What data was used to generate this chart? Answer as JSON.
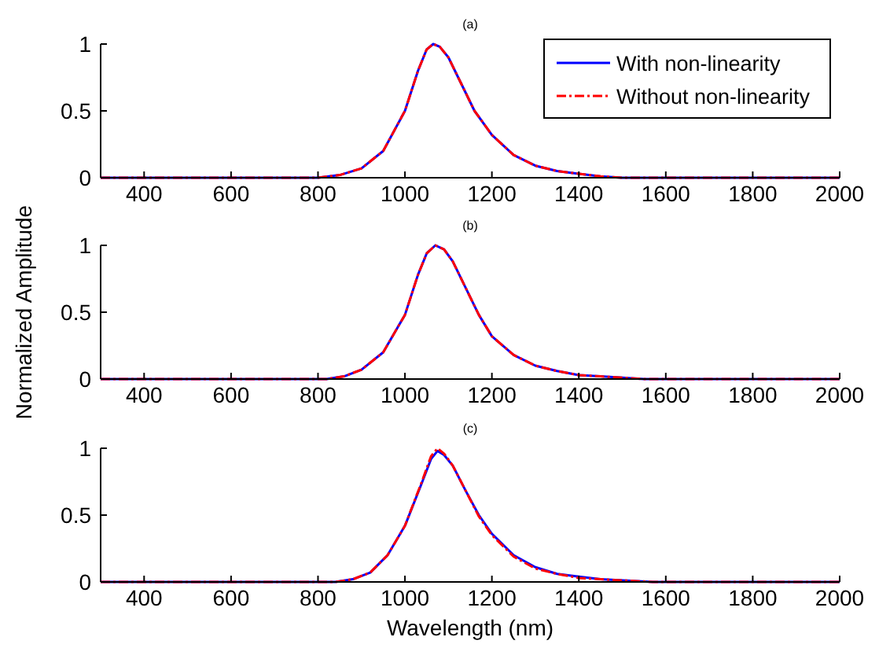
{
  "chart_data": [
    {
      "type": "line",
      "title": "(a)",
      "xlim": [
        300,
        2000
      ],
      "xticks": [
        400,
        600,
        800,
        1000,
        1200,
        1400,
        1600,
        1800,
        2000
      ],
      "ylim": [
        0,
        1
      ],
      "yticks": [
        0,
        0.5,
        1
      ],
      "legend": "top right",
      "series": [
        {
          "name": "With non-linearity",
          "color": "#0000ff",
          "line_style": "solid",
          "x": [
            300,
            800,
            850,
            900,
            950,
            1000,
            1030,
            1050,
            1065,
            1080,
            1100,
            1130,
            1160,
            1200,
            1250,
            1300,
            1350,
            1400,
            1450,
            1500,
            2000
          ],
          "values": [
            0,
            0,
            0.02,
            0.07,
            0.2,
            0.5,
            0.8,
            0.96,
            1,
            0.98,
            0.9,
            0.7,
            0.5,
            0.32,
            0.17,
            0.09,
            0.05,
            0.03,
            0.01,
            0,
            0
          ]
        },
        {
          "name": "Without non-linearity",
          "color": "#ff0000",
          "line_style": "dashed",
          "x": [
            300,
            800,
            850,
            900,
            950,
            1000,
            1030,
            1050,
            1065,
            1080,
            1100,
            1130,
            1160,
            1200,
            1250,
            1300,
            1350,
            1400,
            1450,
            1500,
            2000
          ],
          "values": [
            0,
            0,
            0.02,
            0.07,
            0.2,
            0.5,
            0.8,
            0.96,
            1,
            0.98,
            0.9,
            0.7,
            0.5,
            0.32,
            0.17,
            0.09,
            0.05,
            0.03,
            0.01,
            0,
            0
          ]
        }
      ]
    },
    {
      "type": "line",
      "title": "(b)",
      "ylabel": "Normalized Amplitude",
      "xlim": [
        300,
        2000
      ],
      "xticks": [
        400,
        600,
        800,
        1000,
        1200,
        1400,
        1600,
        1800,
        2000
      ],
      "ylim": [
        0,
        1
      ],
      "yticks": [
        0,
        0.5,
        1
      ],
      "series": [
        {
          "color": "#0000ff",
          "line_style": "solid",
          "x": [
            300,
            820,
            860,
            900,
            950,
            1000,
            1030,
            1050,
            1070,
            1090,
            1110,
            1140,
            1170,
            1200,
            1250,
            1300,
            1350,
            1400,
            1450,
            1550,
            2000
          ],
          "values": [
            0,
            0,
            0.02,
            0.07,
            0.2,
            0.48,
            0.78,
            0.94,
            1,
            0.97,
            0.88,
            0.68,
            0.48,
            0.32,
            0.18,
            0.1,
            0.06,
            0.03,
            0.02,
            0,
            0
          ]
        },
        {
          "color": "#ff0000",
          "line_style": "dashed",
          "x": [
            300,
            820,
            860,
            900,
            950,
            1000,
            1030,
            1050,
            1070,
            1090,
            1110,
            1140,
            1170,
            1200,
            1250,
            1300,
            1350,
            1400,
            1450,
            1550,
            2000
          ],
          "values": [
            0,
            0,
            0.02,
            0.07,
            0.2,
            0.48,
            0.78,
            0.94,
            1,
            0.97,
            0.88,
            0.68,
            0.48,
            0.32,
            0.18,
            0.1,
            0.06,
            0.03,
            0.02,
            0,
            0
          ]
        }
      ]
    },
    {
      "type": "line",
      "title": "(c)",
      "xlabel": "Wavelength (nm)",
      "xlim": [
        300,
        2000
      ],
      "xticks": [
        400,
        600,
        800,
        1000,
        1200,
        1400,
        1600,
        1800,
        2000
      ],
      "ylim": [
        0,
        1
      ],
      "yticks": [
        0,
        0.5,
        1
      ],
      "series": [
        {
          "color": "#0000ff",
          "line_style": "solid",
          "x": [
            300,
            840,
            880,
            920,
            960,
            1000,
            1040,
            1060,
            1075,
            1090,
            1110,
            1140,
            1170,
            1200,
            1250,
            1300,
            1350,
            1400,
            1450,
            1570,
            2000
          ],
          "values": [
            0,
            0,
            0.02,
            0.07,
            0.2,
            0.42,
            0.75,
            0.92,
            0.98,
            0.95,
            0.87,
            0.68,
            0.5,
            0.36,
            0.2,
            0.11,
            0.06,
            0.04,
            0.02,
            0,
            0
          ]
        },
        {
          "color": "#ff0000",
          "line_style": "dashed",
          "x": [
            300,
            840,
            880,
            920,
            960,
            1000,
            1040,
            1060,
            1075,
            1090,
            1110,
            1140,
            1170,
            1200,
            1250,
            1300,
            1350,
            1400,
            1450,
            1570,
            2000
          ],
          "values": [
            0,
            0,
            0.02,
            0.07,
            0.2,
            0.42,
            0.76,
            0.94,
            1,
            0.96,
            0.87,
            0.68,
            0.49,
            0.35,
            0.19,
            0.1,
            0.06,
            0.03,
            0.02,
            0,
            0
          ]
        }
      ]
    }
  ]
}
